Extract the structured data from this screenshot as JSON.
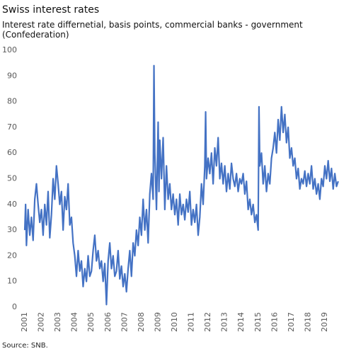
{
  "chart_data": {
    "type": "line",
    "title": "Swiss interest rates",
    "subtitle": "Interest rate differnetial, basis points, commercial banks - government (Confederation)",
    "source": "Source: SNB.",
    "xlim": [
      2001,
      2019.85
    ],
    "xticks": [
      2001,
      2002,
      2003,
      2004,
      2005,
      2006,
      2007,
      2008,
      2009,
      2010,
      2011,
      2012,
      2013,
      2014,
      2015,
      2016,
      2017,
      2018,
      2019
    ],
    "ylim": [
      0,
      100
    ],
    "yticks": [
      0,
      10,
      20,
      30,
      40,
      50,
      60,
      70,
      80,
      90,
      100
    ],
    "grid": false,
    "color": "#4472c4",
    "x": [
      2001,
      2001.05,
      2001.1,
      2001.2,
      2001.3,
      2001.4,
      2001.5,
      2001.6,
      2001.7,
      2001.8,
      2001.9,
      2002,
      2002.1,
      2002.2,
      2002.3,
      2002.4,
      2002.5,
      2002.6,
      2002.7,
      2002.8,
      2002.9,
      2003,
      2003.1,
      2003.2,
      2003.3,
      2003.4,
      2003.5,
      2003.6,
      2003.7,
      2003.8,
      2003.9,
      2004,
      2004.1,
      2004.2,
      2004.3,
      2004.4,
      2004.5,
      2004.6,
      2004.7,
      2004.8,
      2004.9,
      2005,
      2005.1,
      2005.2,
      2005.3,
      2005.4,
      2005.5,
      2005.6,
      2005.7,
      2005.8,
      2005.9,
      2006,
      2006.1,
      2006.2,
      2006.3,
      2006.4,
      2006.5,
      2006.6,
      2006.7,
      2006.8,
      2006.9,
      2007,
      2007.1,
      2007.2,
      2007.3,
      2007.4,
      2007.5,
      2007.6,
      2007.7,
      2007.8,
      2007.9,
      2008,
      2008.1,
      2008.2,
      2008.3,
      2008.4,
      2008.5,
      2008.6,
      2008.7,
      2008.75,
      2008.8,
      2008.9,
      2009,
      2009.05,
      2009.1,
      2009.2,
      2009.3,
      2009.4,
      2009.5,
      2009.6,
      2009.7,
      2009.8,
      2009.9,
      2010,
      2010.1,
      2010.2,
      2010.3,
      2010.4,
      2010.5,
      2010.6,
      2010.7,
      2010.8,
      2010.9,
      2011,
      2011.1,
      2011.2,
      2011.3,
      2011.4,
      2011.5,
      2011.6,
      2011.7,
      2011.8,
      2011.85,
      2011.9,
      2012,
      2012.1,
      2012.2,
      2012.3,
      2012.4,
      2012.5,
      2012.6,
      2012.7,
      2012.8,
      2012.9,
      2013,
      2013.1,
      2013.2,
      2013.3,
      2013.4,
      2013.5,
      2013.6,
      2013.7,
      2013.8,
      2013.9,
      2014,
      2014.1,
      2014.2,
      2014.3,
      2014.4,
      2014.5,
      2014.6,
      2014.7,
      2014.8,
      2014.9,
      2015,
      2015.05,
      2015.1,
      2015.2,
      2015.3,
      2015.4,
      2015.5,
      2015.6,
      2015.7,
      2015.8,
      2015.9,
      2016,
      2016.1,
      2016.2,
      2016.3,
      2016.4,
      2016.5,
      2016.6,
      2016.7,
      2016.8,
      2016.9,
      2017,
      2017.1,
      2017.2,
      2017.3,
      2017.4,
      2017.5,
      2017.6,
      2017.7,
      2017.8,
      2017.9,
      2018,
      2018.1,
      2018.2,
      2018.3,
      2018.4,
      2018.5,
      2018.6,
      2018.7,
      2018.8,
      2018.9,
      2019,
      2019.1,
      2019.2,
      2019.3,
      2019.4,
      2019.5,
      2019.6,
      2019.7,
      2019.8
    ],
    "values": [
      30,
      40,
      24,
      38,
      28,
      35,
      26,
      42,
      48,
      40,
      33,
      38,
      28,
      40,
      32,
      45,
      27,
      36,
      50,
      42,
      55,
      48,
      40,
      45,
      30,
      43,
      38,
      48,
      32,
      35,
      25,
      20,
      12,
      22,
      14,
      18,
      8,
      15,
      10,
      20,
      12,
      14,
      22,
      28,
      18,
      22,
      15,
      18,
      10,
      17,
      1,
      18,
      25,
      15,
      20,
      12,
      14,
      22,
      11,
      16,
      8,
      13,
      6,
      15,
      22,
      12,
      25,
      20,
      30,
      24,
      35,
      28,
      42,
      30,
      38,
      25,
      44,
      52,
      42,
      94,
      60,
      38,
      72,
      45,
      65,
      50,
      66,
      38,
      55,
      42,
      48,
      38,
      44,
      36,
      42,
      32,
      44,
      36,
      40,
      34,
      42,
      37,
      45,
      32,
      38,
      33,
      40,
      28,
      35,
      48,
      40,
      55,
      76,
      50,
      58,
      52,
      60,
      48,
      62,
      55,
      66,
      50,
      56,
      48,
      55,
      45,
      52,
      46,
      56,
      50,
      47,
      52,
      45,
      50,
      48,
      52,
      44,
      49,
      38,
      42,
      36,
      40,
      33,
      36,
      30,
      78,
      55,
      60,
      48,
      55,
      45,
      52,
      48,
      58,
      62,
      68,
      60,
      73,
      65,
      78,
      68,
      75,
      64,
      70,
      58,
      62,
      55,
      58,
      50,
      54,
      46,
      50,
      48,
      53,
      47,
      52,
      48,
      55,
      46,
      50,
      44,
      48,
      42,
      50,
      47,
      55,
      50,
      57,
      49,
      54,
      46,
      52,
      47,
      49
    ]
  }
}
